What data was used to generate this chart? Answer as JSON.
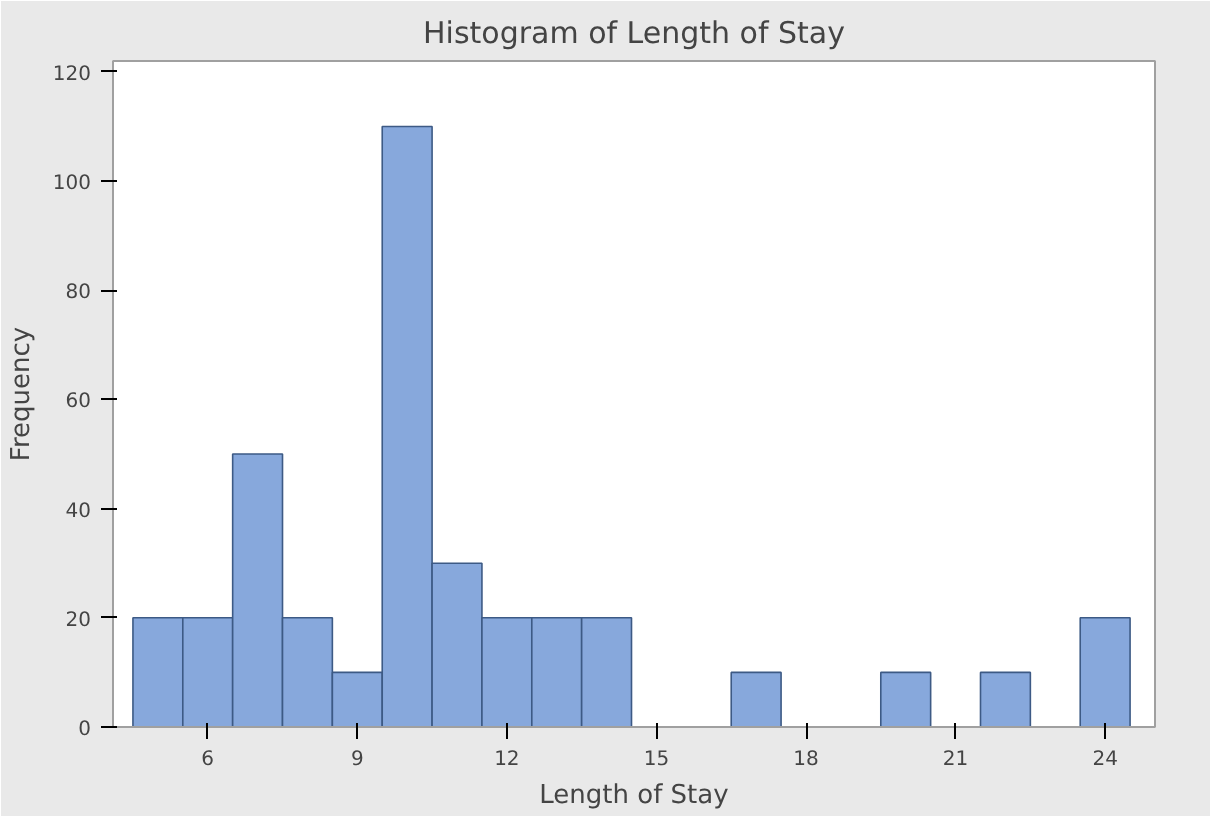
{
  "chart_data": {
    "type": "histogram",
    "title": "Histogram of Length of Stay",
    "xlabel": "Length of Stay",
    "ylabel": "Frequency",
    "bins": [
      4.5,
      5.5,
      6.5,
      7.5,
      8.5,
      9.5,
      10.5,
      11.5,
      12.5,
      13.5,
      14.5,
      15.5,
      16.5,
      17.5,
      18.5,
      19.5,
      20.5,
      21.5,
      22.5,
      23.5,
      24.5
    ],
    "values": [
      20,
      20,
      50,
      20,
      10,
      110,
      30,
      20,
      20,
      20,
      0,
      0,
      10,
      0,
      0,
      10,
      0,
      10,
      0,
      20
    ],
    "color": "#87a8dc",
    "xlim": [
      4.1,
      25
    ],
    "xticks": [
      6,
      9,
      12,
      15,
      18,
      21,
      24
    ],
    "ylim": [
      0,
      122
    ],
    "yticks": [
      0,
      20,
      40,
      60,
      80,
      100,
      120
    ],
    "grid": false
  }
}
